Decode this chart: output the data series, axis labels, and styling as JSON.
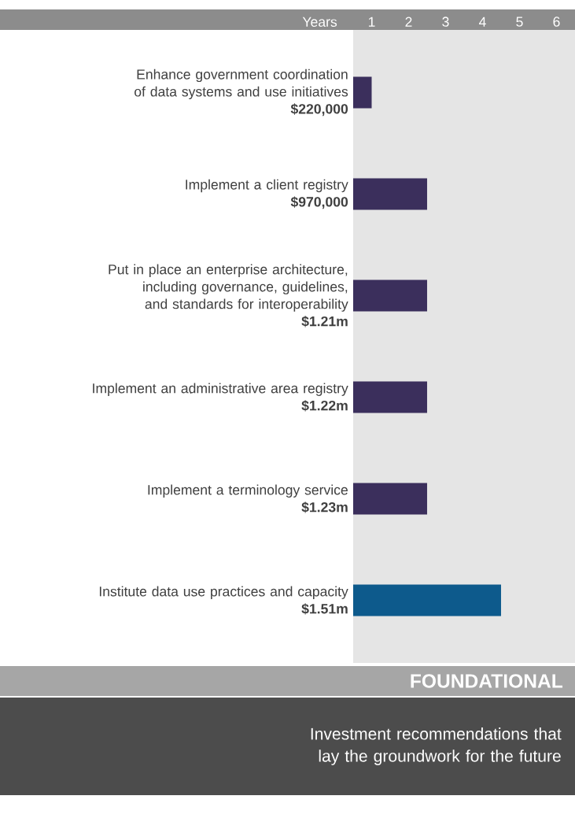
{
  "chart_data": {
    "type": "bar",
    "orientation": "horizontal",
    "title": "FOUNDATIONAL",
    "subtitle": "Investment recommendations that lay the groundwork for the future",
    "xlabel": "Years",
    "categories": [
      "Enhance government coordination of data systems and use initiatives",
      "Implement a client registry",
      "Put in place an enterprise architecture, including governance, guidelines, and standards for interoperability",
      "Implement an administrative area registry",
      "Implement a terminology service",
      "Institute data use practices and capacity"
    ],
    "values": [
      0.5,
      2,
      2,
      2,
      2,
      4
    ],
    "colors": [
      "#3b2f5c",
      "#3b2f5c",
      "#3b2f5c",
      "#3b2f5c",
      "#3b2f5c",
      "#0d5a8c"
    ],
    "xlim": [
      0,
      6
    ],
    "xticks": [
      {
        "value": 0.5,
        "label": "1"
      },
      {
        "value": 1.5,
        "label": "2"
      },
      {
        "value": 2.5,
        "label": "3"
      },
      {
        "value": 3.5,
        "label": "4"
      },
      {
        "value": 4.5,
        "label": "5"
      },
      {
        "value": 5.5,
        "label": "6"
      }
    ],
    "annotations": [
      "$220,000",
      "$970,000",
      "$1.21m",
      "$1.22m",
      "$1.23m",
      "$1.51m"
    ]
  }
}
